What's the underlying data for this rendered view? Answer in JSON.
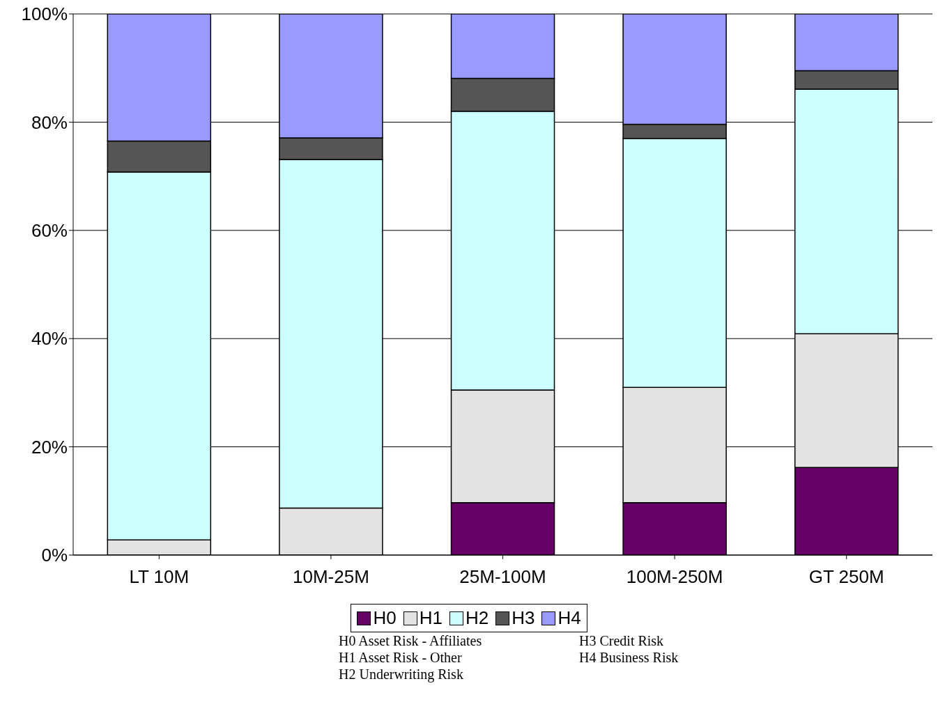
{
  "chart_data": {
    "type": "bar",
    "stacked": true,
    "categories": [
      "LT 10M",
      "10M-25M",
      "25M-100M",
      "100M-250M",
      "GT 250M"
    ],
    "series": [
      {
        "name": "H0",
        "color": "#660066",
        "values": [
          0,
          0,
          9.7,
          9.7,
          16.2
        ]
      },
      {
        "name": "H1",
        "color": "#e3e3e3",
        "values": [
          2.8,
          8.7,
          20.8,
          21.3,
          24.7
        ]
      },
      {
        "name": "H2",
        "color": "#ccffff",
        "values": [
          68.0,
          64.4,
          51.5,
          46.0,
          45.2
        ]
      },
      {
        "name": "H3",
        "color": "#555555",
        "values": [
          5.7,
          4.0,
          6.1,
          2.6,
          3.4
        ]
      },
      {
        "name": "H4",
        "color": "#9999ff",
        "values": [
          23.5,
          22.9,
          11.9,
          20.4,
          10.5
        ]
      }
    ],
    "ylim": [
      0,
      100
    ],
    "yticks": [
      {
        "value": 0,
        "label": "0%"
      },
      {
        "value": 20,
        "label": "20%"
      },
      {
        "value": 40,
        "label": "40%"
      },
      {
        "value": 60,
        "label": "60%"
      },
      {
        "value": 80,
        "label": "80%"
      },
      {
        "value": 100,
        "label": "100%"
      }
    ],
    "grid": "y",
    "legend": "bottom",
    "annotations": [
      "H0 Asset Risk - Affiliates",
      "H3 Credit Risk",
      "H1 Asset Risk - Other",
      "H4 Business Risk",
      "H2 Underwriting Risk"
    ]
  }
}
